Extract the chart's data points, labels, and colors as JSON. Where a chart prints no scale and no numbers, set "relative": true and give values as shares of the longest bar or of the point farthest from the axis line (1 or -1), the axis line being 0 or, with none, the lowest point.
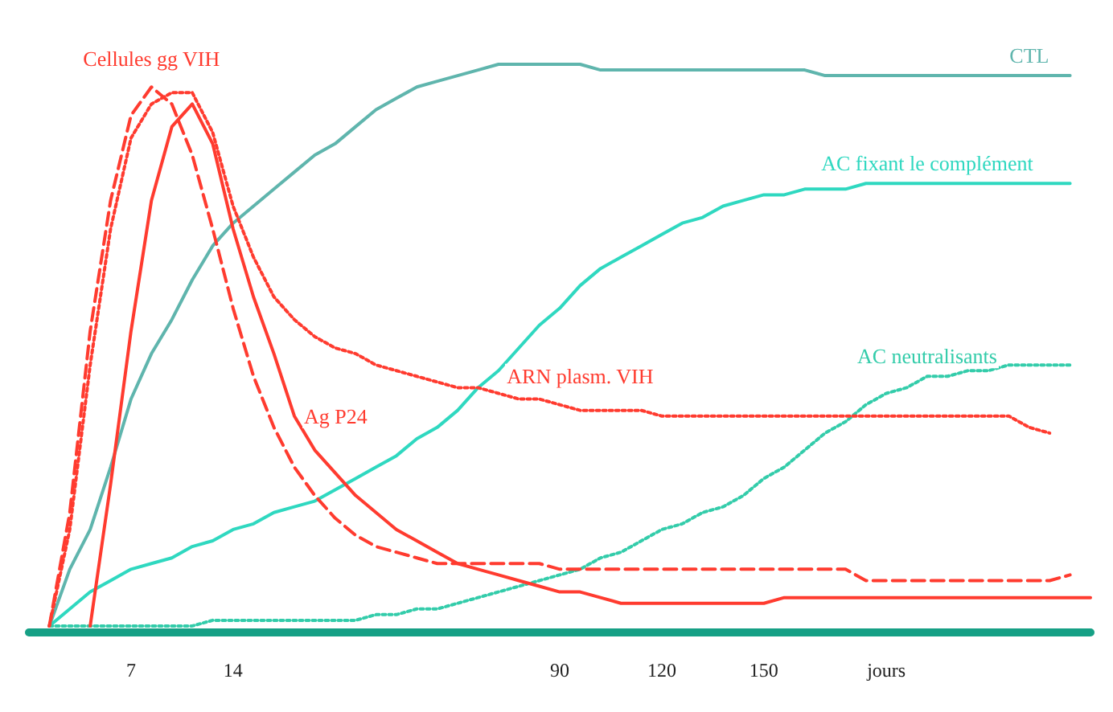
{
  "chart_data": {
    "type": "line",
    "relative": true,
    "legend": false,
    "grid": false,
    "marker": "none",
    "categories": [
      null,
      null,
      null,
      null,
      null,
      "7",
      null,
      null,
      null,
      null,
      "14",
      null,
      null,
      null,
      null,
      null,
      null,
      null,
      null,
      null,
      null,
      null,
      null,
      null,
      null,
      null,
      "90",
      null,
      null,
      null,
      null,
      "120",
      null,
      null,
      null,
      null,
      "150",
      null,
      null,
      null,
      null,
      null,
      "jours",
      null,
      null,
      null,
      null,
      null,
      null,
      null,
      null,
      null,
      null
    ],
    "series": [
      {
        "name": "CTL",
        "color": "#5fb5ad",
        "line_style": "solid",
        "values": [
          null,
          0.01,
          0.11,
          0.18,
          0.29,
          0.41,
          0.49,
          0.55,
          0.62,
          0.68,
          0.72,
          0.75,
          0.78,
          0.81,
          0.84,
          0.86,
          0.89,
          0.92,
          0.94,
          0.96,
          0.97,
          0.98,
          0.99,
          1.0,
          1.0,
          1.0,
          1.0,
          1.0,
          0.99,
          0.99,
          0.99,
          0.99,
          0.99,
          0.99,
          0.99,
          0.99,
          0.99,
          0.99,
          0.99,
          0.98,
          0.98,
          0.98,
          0.98,
          0.98,
          0.98,
          0.98,
          0.98,
          0.98,
          0.98,
          0.98,
          0.98,
          0.98,
          null
        ]
      },
      {
        "name": "AC fixant le complément",
        "color": "#2fd8c0",
        "line_style": "solid",
        "values": [
          null,
          0.01,
          0.04,
          0.07,
          0.09,
          0.11,
          0.12,
          0.13,
          0.15,
          0.16,
          0.18,
          0.19,
          0.21,
          0.22,
          0.23,
          0.25,
          0.27,
          0.29,
          0.31,
          0.34,
          0.36,
          0.39,
          0.43,
          0.46,
          0.5,
          0.54,
          0.57,
          0.61,
          0.64,
          0.66,
          0.68,
          0.7,
          0.72,
          0.73,
          0.75,
          0.76,
          0.77,
          0.77,
          0.78,
          0.78,
          0.78,
          0.79,
          0.79,
          0.79,
          0.79,
          0.79,
          0.79,
          0.79,
          0.79,
          0.79,
          0.79,
          0.79,
          null
        ]
      },
      {
        "name": "AC neutralisants",
        "color": "#33ccaa",
        "line_style": "dotted",
        "values": [
          null,
          0.01,
          0.01,
          0.01,
          0.01,
          0.01,
          0.01,
          0.01,
          0.01,
          0.02,
          0.02,
          0.02,
          0.02,
          0.02,
          0.02,
          0.02,
          0.02,
          0.03,
          0.03,
          0.04,
          0.04,
          0.05,
          0.06,
          0.07,
          0.08,
          0.09,
          0.1,
          0.11,
          0.13,
          0.14,
          0.16,
          0.18,
          0.19,
          0.21,
          0.22,
          0.24,
          0.27,
          0.29,
          0.32,
          0.35,
          0.37,
          0.4,
          0.42,
          0.43,
          0.45,
          0.45,
          0.46,
          0.46,
          0.47,
          0.47,
          0.47,
          0.47,
          null
        ]
      },
      {
        "name": "Cellules gg VIH",
        "color": "#ff3b2f",
        "line_style": "dashed",
        "values": [
          null,
          0.01,
          0.21,
          0.53,
          0.76,
          0.91,
          0.96,
          0.93,
          0.84,
          0.71,
          0.57,
          0.45,
          0.36,
          0.29,
          0.24,
          0.2,
          0.17,
          0.15,
          0.14,
          0.13,
          0.12,
          0.12,
          0.12,
          0.12,
          0.12,
          0.12,
          0.11,
          0.11,
          0.11,
          0.11,
          0.11,
          0.11,
          0.11,
          0.11,
          0.11,
          0.11,
          0.11,
          0.11,
          0.11,
          0.11,
          0.11,
          0.09,
          0.09,
          0.09,
          0.09,
          0.09,
          0.09,
          0.09,
          0.09,
          0.09,
          0.09,
          0.1,
          null
        ]
      },
      {
        "name": "Ag P24",
        "color": "#ff3b2f",
        "line_style": "solid",
        "values": [
          null,
          null,
          null,
          0.01,
          0.26,
          0.53,
          0.76,
          0.89,
          0.93,
          0.86,
          0.71,
          0.59,
          0.49,
          0.38,
          0.32,
          0.28,
          0.24,
          0.21,
          0.18,
          0.16,
          0.14,
          0.12,
          0.11,
          0.1,
          0.09,
          0.08,
          0.07,
          0.07,
          0.06,
          0.05,
          0.05,
          0.05,
          0.05,
          0.05,
          0.05,
          0.05,
          0.05,
          0.06,
          0.06,
          0.06,
          0.06,
          0.06,
          0.06,
          0.06,
          0.06,
          0.06,
          0.06,
          0.06,
          0.06,
          0.06,
          0.06,
          0.06,
          0.06
        ]
      },
      {
        "name": "ARN plasm. VIH",
        "color": "#ff3b2f",
        "line_style": "dotted",
        "values": [
          null,
          0.01,
          0.18,
          0.47,
          0.71,
          0.87,
          0.93,
          0.95,
          0.95,
          0.88,
          0.75,
          0.66,
          0.59,
          0.55,
          0.52,
          0.5,
          0.49,
          0.47,
          0.46,
          0.45,
          0.44,
          0.43,
          0.43,
          0.42,
          0.41,
          0.41,
          0.4,
          0.39,
          0.39,
          0.39,
          0.39,
          0.38,
          0.38,
          0.38,
          0.38,
          0.38,
          0.38,
          0.38,
          0.38,
          0.38,
          0.38,
          0.38,
          0.38,
          0.38,
          0.38,
          0.38,
          0.38,
          0.38,
          0.38,
          0.36,
          0.35,
          null,
          null
        ]
      }
    ]
  }
}
